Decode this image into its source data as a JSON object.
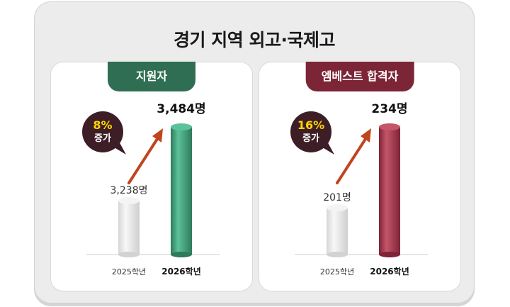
{
  "title": "경기 지역 외고·국제고",
  "colors": {
    "applicant_tab": "#2f6e52",
    "applicant_bar": "#3fa07d",
    "admit_tab": "#7c2536",
    "admit_bar": "#a0374c",
    "prev_bar": "#e8e8e8",
    "arrow": "#c0451e",
    "badge": "#3d1e26"
  },
  "chart_data": [
    {
      "type": "bar",
      "panel_title": "지원자",
      "categories": [
        "2025학년",
        "2026학년"
      ],
      "values": [
        3238,
        3484
      ],
      "value_labels": [
        "3,238명",
        "3,484명"
      ],
      "increase_pct": "8%",
      "increase_word": "증가"
    },
    {
      "type": "bar",
      "panel_title": "엠베스트 합격자",
      "categories": [
        "2025학년",
        "2026학년"
      ],
      "values": [
        201,
        234
      ],
      "value_labels": [
        "201명",
        "234명"
      ],
      "increase_pct": "16%",
      "increase_word": "증가"
    }
  ]
}
